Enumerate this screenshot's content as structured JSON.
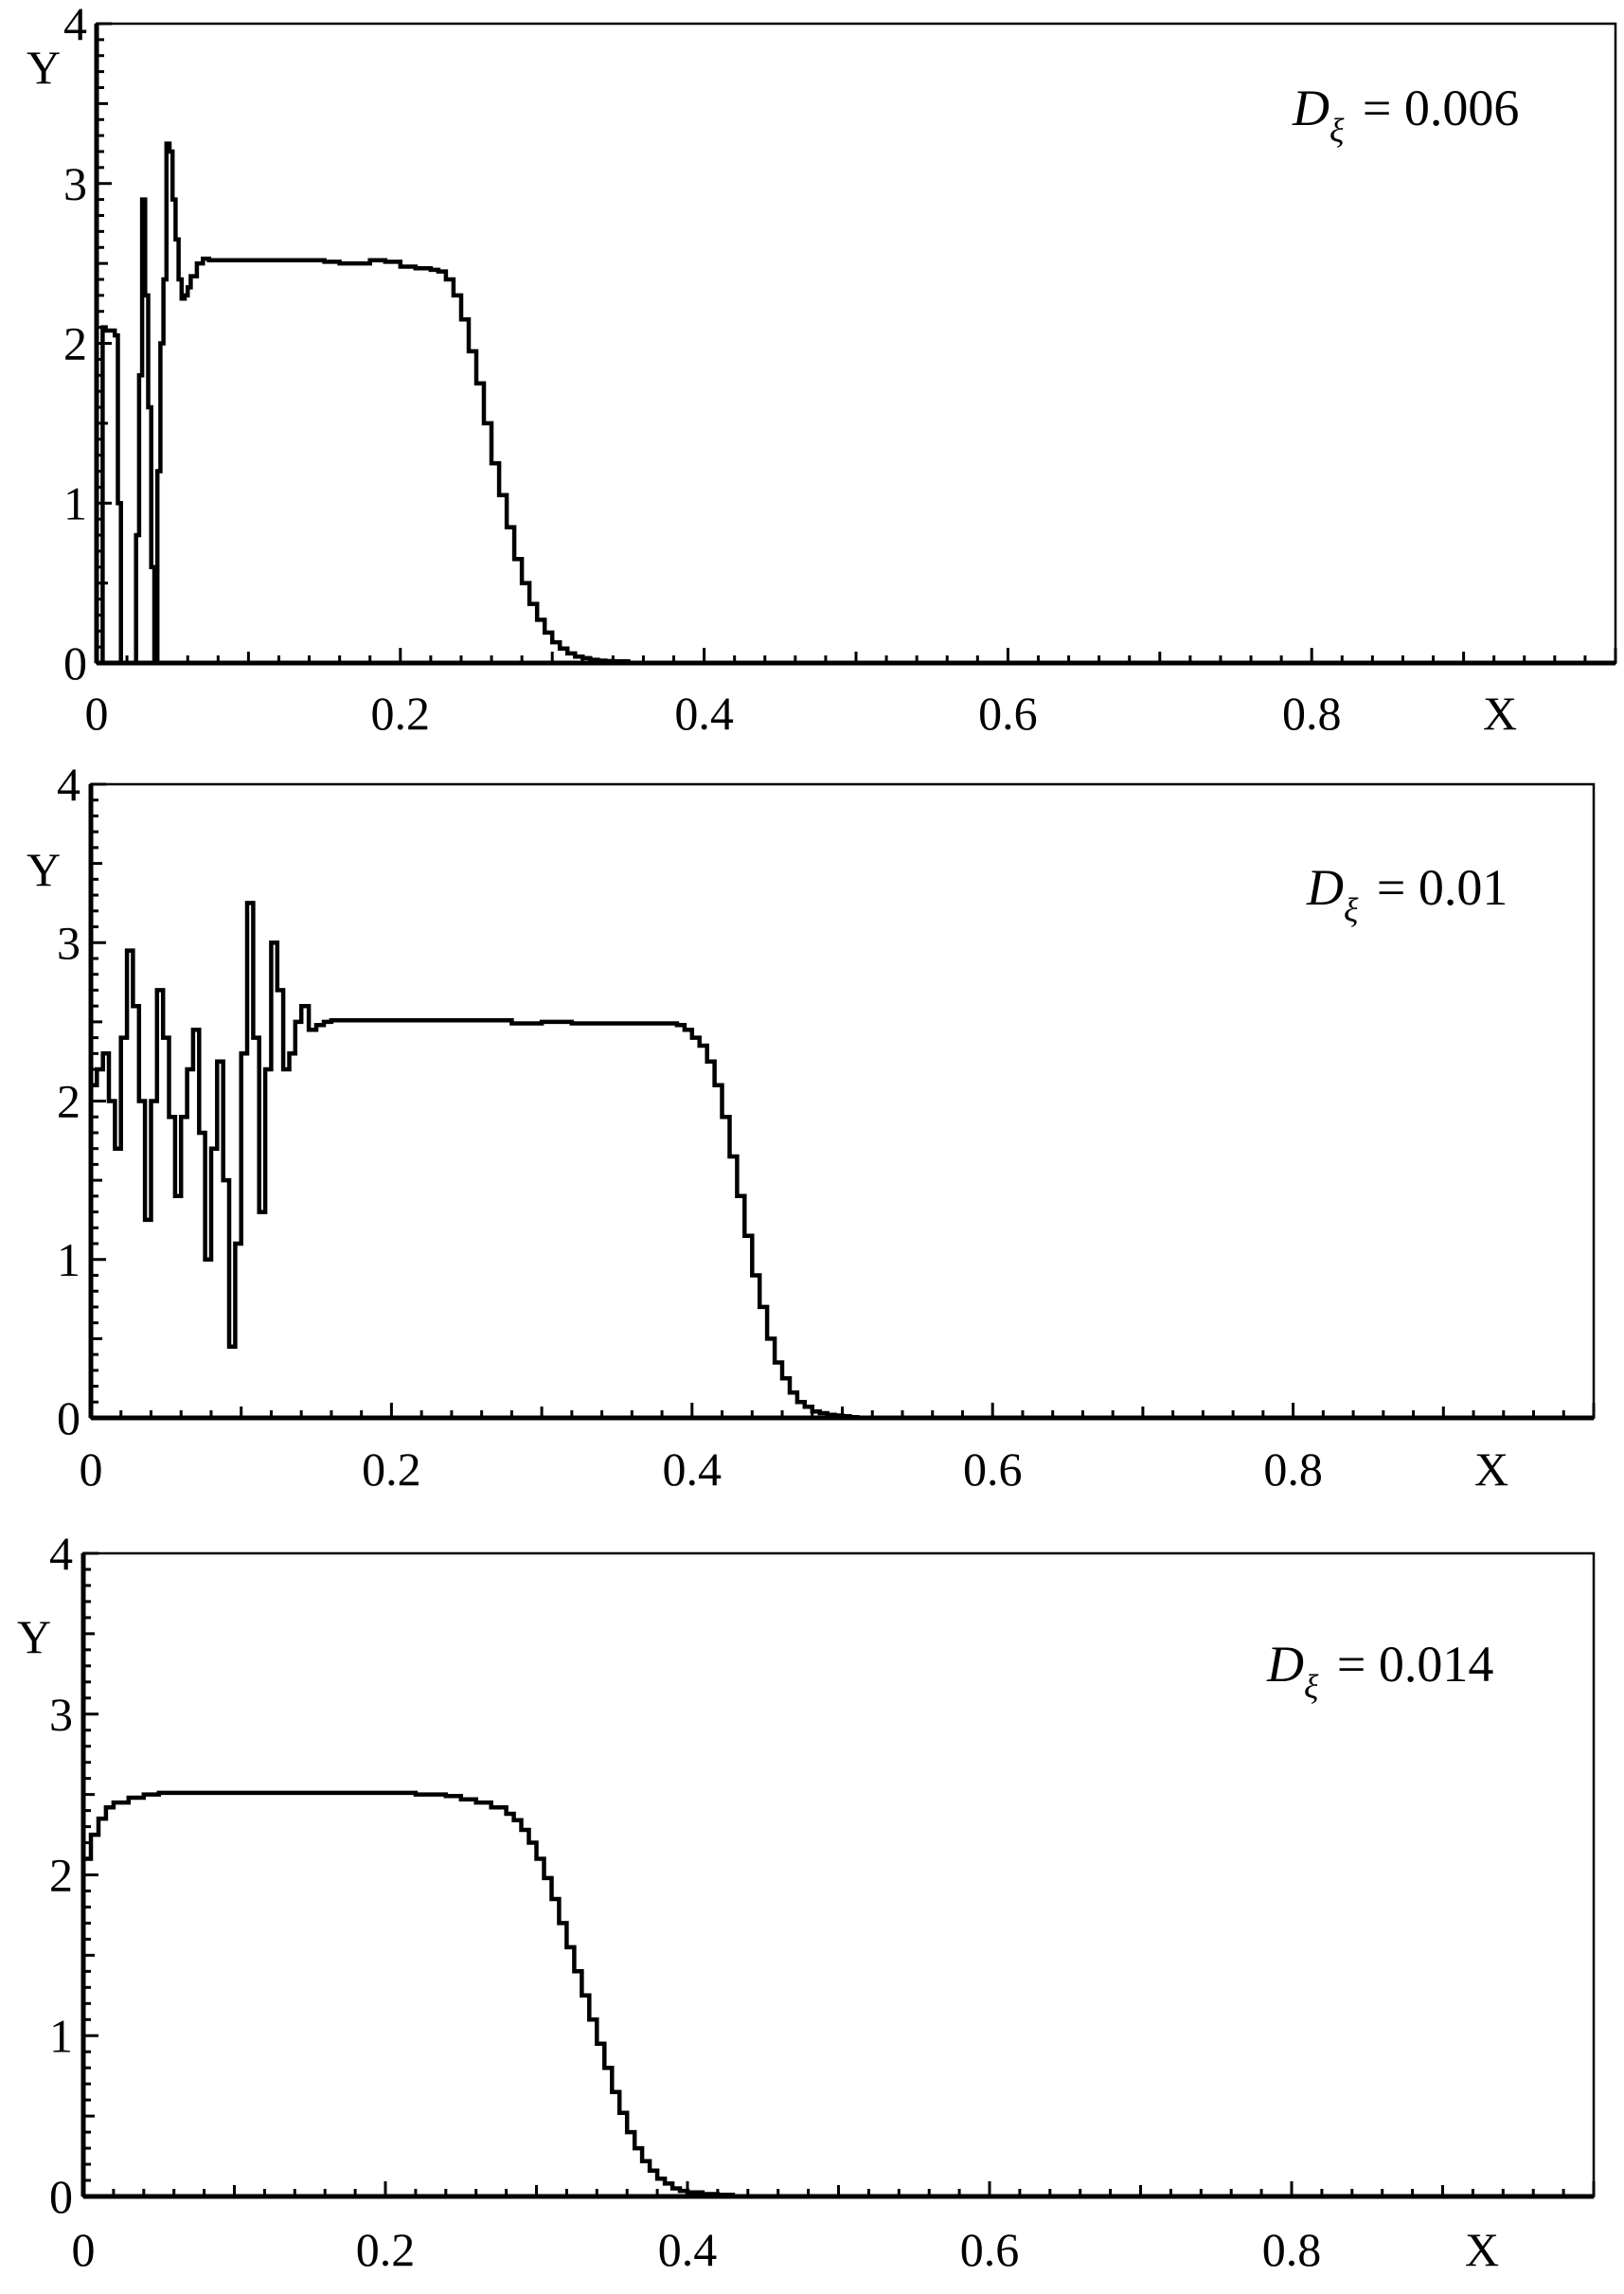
{
  "chart_data": [
    {
      "type": "line",
      "xlabel": "X",
      "ylabel": "Y",
      "xlim": [
        0,
        1.0
      ],
      "ylim": [
        0,
        4
      ],
      "xticks": [
        0,
        0.2,
        0.4,
        0.6,
        0.8
      ],
      "xtick_labels": [
        "0",
        "0.2",
        "0.4",
        "0.6",
        "0.8"
      ],
      "yticks": [
        0,
        1,
        2,
        3,
        4
      ],
      "ytick_labels": [
        "0",
        "1",
        "2",
        "3",
        "4"
      ],
      "annotation": {
        "symbol": "D",
        "subscript": "ξ",
        "text": " = 0.006"
      },
      "grid": false,
      "x": [
        0,
        0.004,
        0.006,
        0.012,
        0.014,
        0.016,
        0.018,
        0.022,
        0.024,
        0.026,
        0.028,
        0.03,
        0.032,
        0.034,
        0.036,
        0.038,
        0.04,
        0.042,
        0.044,
        0.046,
        0.048,
        0.05,
        0.052,
        0.054,
        0.056,
        0.058,
        0.06,
        0.062,
        0.066,
        0.07,
        0.074,
        0.078,
        0.085,
        0.1,
        0.15,
        0.16,
        0.17,
        0.18,
        0.19,
        0.2,
        0.21,
        0.22,
        0.225,
        0.23,
        0.235,
        0.24,
        0.245,
        0.25,
        0.255,
        0.26,
        0.265,
        0.27,
        0.275,
        0.28,
        0.285,
        0.29,
        0.295,
        0.3,
        0.305,
        0.31,
        0.315,
        0.32,
        0.325,
        0.33,
        0.335,
        0.34,
        0.345,
        0.35,
        1.0
      ],
      "y": [
        0,
        2.1,
        2.08,
        2.05,
        1.0,
        0,
        0,
        0,
        0,
        0.8,
        1.8,
        2.9,
        2.3,
        1.6,
        0.6,
        0,
        1.2,
        2.0,
        2.4,
        3.25,
        3.2,
        2.9,
        2.65,
        2.4,
        2.28,
        2.3,
        2.35,
        2.42,
        2.5,
        2.53,
        2.52,
        2.52,
        2.52,
        2.52,
        2.51,
        2.5,
        2.5,
        2.52,
        2.51,
        2.48,
        2.47,
        2.46,
        2.45,
        2.4,
        2.3,
        2.15,
        1.95,
        1.75,
        1.5,
        1.25,
        1.05,
        0.85,
        0.65,
        0.5,
        0.37,
        0.27,
        0.19,
        0.13,
        0.09,
        0.06,
        0.04,
        0.03,
        0.02,
        0.015,
        0.012,
        0.01,
        0.01,
        0,
        0
      ]
    },
    {
      "type": "line",
      "xlabel": "X",
      "ylabel": "Y",
      "xlim": [
        0,
        1.0
      ],
      "ylim": [
        0,
        4
      ],
      "xticks": [
        0,
        0.2,
        0.4,
        0.6,
        0.8
      ],
      "xtick_labels": [
        "0",
        "0.2",
        "0.4",
        "0.6",
        "0.8"
      ],
      "yticks": [
        0,
        1,
        2,
        3,
        4
      ],
      "ytick_labels": [
        "0",
        "1",
        "2",
        "3",
        "4"
      ],
      "annotation": {
        "symbol": "D",
        "subscript": "ξ",
        "text": " = 0.01"
      },
      "grid": false,
      "x": [
        0,
        0.004,
        0.008,
        0.012,
        0.016,
        0.02,
        0.024,
        0.028,
        0.032,
        0.036,
        0.04,
        0.044,
        0.048,
        0.052,
        0.056,
        0.06,
        0.064,
        0.068,
        0.072,
        0.076,
        0.08,
        0.084,
        0.088,
        0.092,
        0.096,
        0.1,
        0.104,
        0.108,
        0.112,
        0.116,
        0.12,
        0.124,
        0.128,
        0.132,
        0.136,
        0.14,
        0.145,
        0.15,
        0.155,
        0.16,
        0.17,
        0.2,
        0.25,
        0.28,
        0.3,
        0.32,
        0.35,
        0.38,
        0.39,
        0.395,
        0.4,
        0.405,
        0.41,
        0.415,
        0.42,
        0.425,
        0.43,
        0.435,
        0.44,
        0.445,
        0.45,
        0.455,
        0.46,
        0.465,
        0.47,
        0.475,
        0.48,
        0.485,
        0.49,
        0.495,
        0.5,
        0.505,
        0.51,
        1.0
      ],
      "y": [
        2.1,
        2.2,
        2.3,
        2.0,
        1.7,
        2.4,
        2.95,
        2.6,
        2.0,
        1.25,
        2.0,
        2.7,
        2.4,
        1.9,
        1.4,
        1.9,
        2.2,
        2.45,
        1.8,
        1.0,
        1.7,
        2.25,
        1.5,
        0.45,
        1.1,
        2.3,
        3.25,
        2.4,
        1.3,
        2.2,
        3.0,
        2.7,
        2.2,
        2.3,
        2.5,
        2.6,
        2.45,
        2.48,
        2.5,
        2.51,
        2.51,
        2.51,
        2.51,
        2.49,
        2.5,
        2.49,
        2.49,
        2.49,
        2.48,
        2.45,
        2.4,
        2.35,
        2.25,
        2.1,
        1.9,
        1.65,
        1.4,
        1.15,
        0.9,
        0.7,
        0.5,
        0.35,
        0.25,
        0.16,
        0.1,
        0.07,
        0.04,
        0.03,
        0.02,
        0.015,
        0.01,
        0.005,
        0,
        0
      ]
    },
    {
      "type": "line",
      "xlabel": "X",
      "ylabel": "Y",
      "xlim": [
        0,
        1.0
      ],
      "ylim": [
        0,
        4
      ],
      "xticks": [
        0,
        0.2,
        0.4,
        0.6,
        0.8
      ],
      "xtick_labels": [
        "0",
        "0.2",
        "0.4",
        "0.6",
        "0.8"
      ],
      "yticks": [
        0,
        1,
        2,
        3,
        4
      ],
      "ytick_labels": [
        "0",
        "1",
        "2",
        "3",
        "4"
      ],
      "annotation": {
        "symbol": "D",
        "subscript": "ξ",
        "text": " = 0.014"
      },
      "grid": false,
      "x": [
        0,
        0.005,
        0.01,
        0.015,
        0.02,
        0.03,
        0.04,
        0.05,
        0.1,
        0.15,
        0.2,
        0.22,
        0.24,
        0.25,
        0.26,
        0.27,
        0.28,
        0.285,
        0.29,
        0.295,
        0.3,
        0.305,
        0.31,
        0.315,
        0.32,
        0.325,
        0.33,
        0.335,
        0.34,
        0.345,
        0.35,
        0.355,
        0.36,
        0.365,
        0.37,
        0.375,
        0.38,
        0.385,
        0.39,
        0.395,
        0.4,
        0.41,
        0.42,
        0.43,
        1.0
      ],
      "y": [
        2.1,
        2.25,
        2.35,
        2.42,
        2.45,
        2.48,
        2.5,
        2.51,
        2.51,
        2.51,
        2.51,
        2.5,
        2.49,
        2.47,
        2.45,
        2.42,
        2.38,
        2.34,
        2.28,
        2.2,
        2.1,
        1.98,
        1.85,
        1.7,
        1.55,
        1.4,
        1.25,
        1.1,
        0.95,
        0.8,
        0.65,
        0.52,
        0.4,
        0.3,
        0.22,
        0.16,
        0.11,
        0.08,
        0.05,
        0.035,
        0.025,
        0.015,
        0.01,
        0,
        0
      ]
    }
  ]
}
